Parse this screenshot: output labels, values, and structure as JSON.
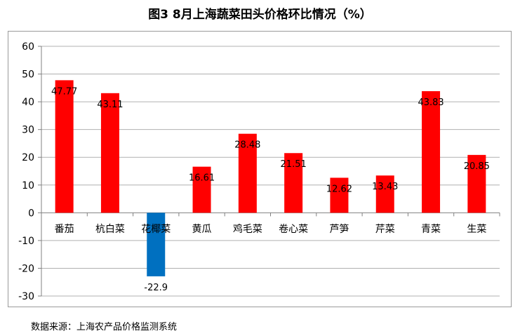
{
  "title": "图3 8月上海蔬菜田头价格环比情况（%）",
  "source": "数据来源：上海农产品价格监测系统",
  "chart_data": {
    "type": "bar",
    "categories": [
      "番茄",
      "杭白菜",
      "花椰菜",
      "黄瓜",
      "鸡毛菜",
      "卷心菜",
      "芦笋",
      "芹菜",
      "青菜",
      "生菜"
    ],
    "values": [
      47.77,
      43.11,
      -22.9,
      16.61,
      28.48,
      21.51,
      12.62,
      13.43,
      43.83,
      20.85
    ],
    "value_labels": [
      "47.77",
      "43.11",
      "-22.9",
      "16.61",
      "28.48",
      "21.51",
      "12.62",
      "13.43",
      "43.83",
      "20.85"
    ],
    "ylim": [
      -30,
      60
    ],
    "yticks": [
      60,
      50,
      40,
      30,
      20,
      10,
      0,
      -10,
      -20,
      -30
    ],
    "grid": true,
    "colors": {
      "positive": "#ff0000",
      "negative": "#0070c0",
      "grid": "#b0b0b0",
      "axis": "#808080"
    }
  }
}
